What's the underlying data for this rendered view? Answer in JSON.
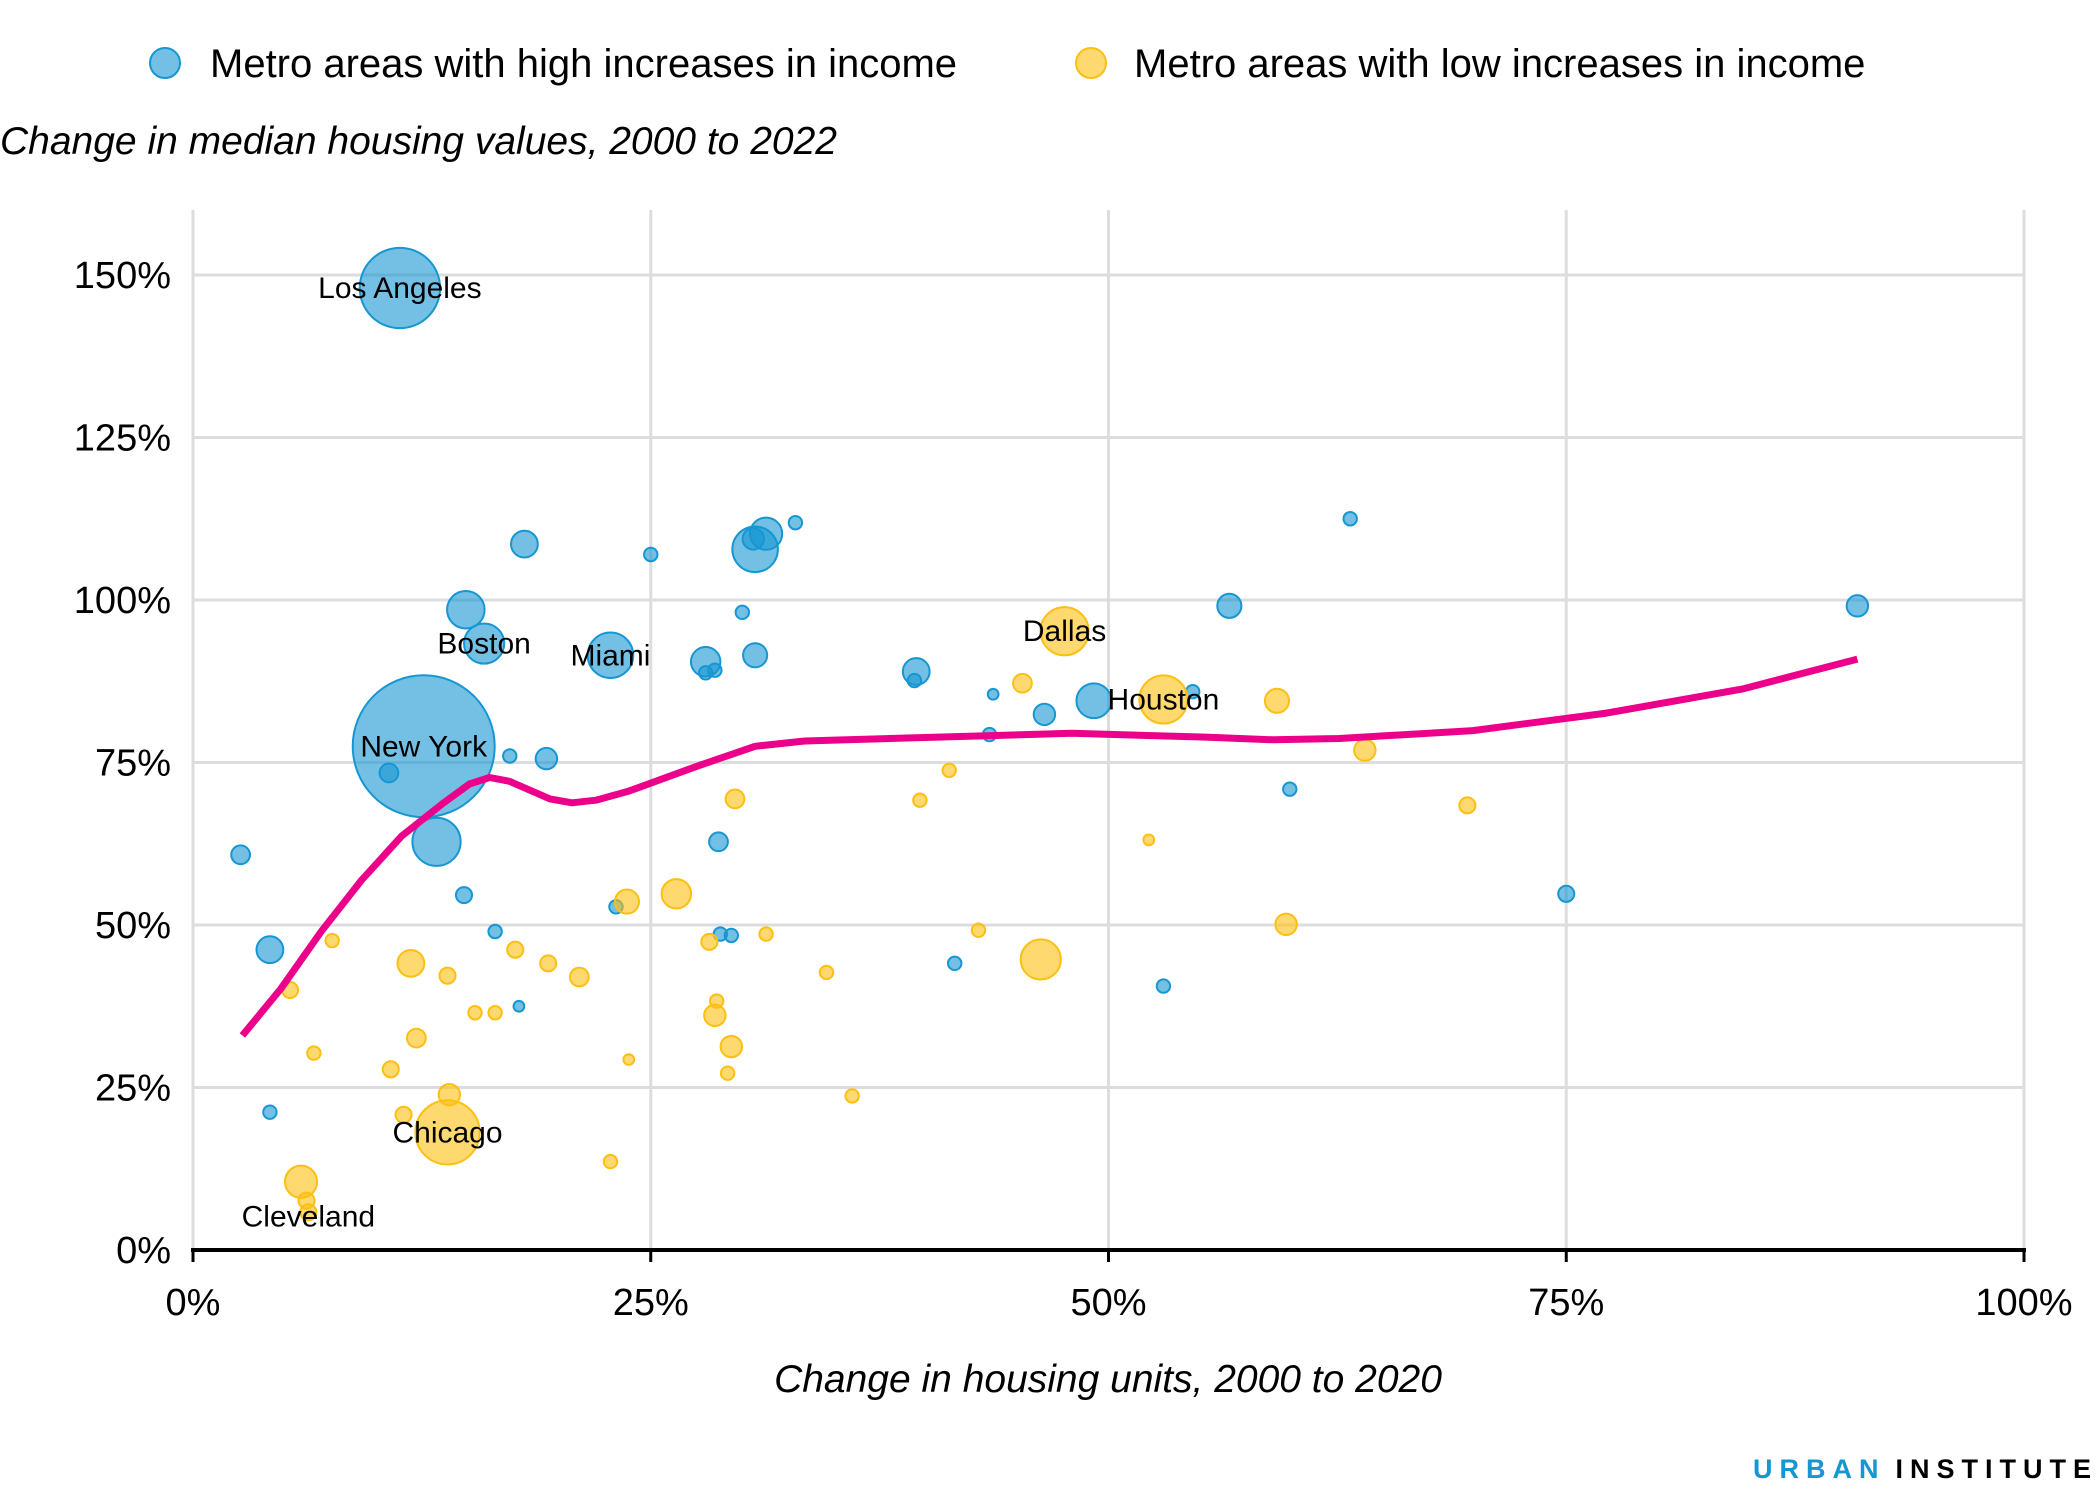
{
  "chart_data": {
    "type": "scatter",
    "subtitle": "Change in median housing values, 2000 to 2022",
    "xlabel": "Change in housing units, 2000 to 2020",
    "ylabel": "",
    "xlim": [
      0,
      100
    ],
    "ylim": [
      0,
      160
    ],
    "x_ticks": [
      0,
      25,
      50,
      75,
      100
    ],
    "x_tick_labels": [
      "0%",
      "25%",
      "50%",
      "75%",
      "100%"
    ],
    "y_ticks": [
      0,
      25,
      50,
      75,
      100,
      125,
      150
    ],
    "y_tick_labels": [
      "0%",
      "25%",
      "50%",
      "75%",
      "100%",
      "125%",
      "150%"
    ],
    "grid": true,
    "legend_position": "top",
    "colors": {
      "high": "#1696d2",
      "low": "#fdbf11",
      "trend": "#ec008b"
    },
    "series": [
      {
        "name": "Metro areas with high increases in income",
        "key": "high",
        "points": [
          {
            "x": 11.3,
            "y": 148.0,
            "size": 30,
            "label": "Los Angeles"
          },
          {
            "x": 12.6,
            "y": 77.5,
            "size": 53,
            "label": "New York"
          },
          {
            "x": 15.9,
            "y": 93.3,
            "size": 15,
            "label": "Boston"
          },
          {
            "x": 14.9,
            "y": 98.5,
            "size": 14
          },
          {
            "x": 22.8,
            "y": 91.5,
            "size": 17,
            "label": "Miami"
          },
          {
            "x": 18.1,
            "y": 108.6,
            "size": 10
          },
          {
            "x": 25.0,
            "y": 107.0,
            "size": 5
          },
          {
            "x": 30.7,
            "y": 107.8,
            "size": 17
          },
          {
            "x": 31.3,
            "y": 110.2,
            "size": 12
          },
          {
            "x": 30.6,
            "y": 109.4,
            "size": 8
          },
          {
            "x": 32.9,
            "y": 111.9,
            "size": 5
          },
          {
            "x": 30.0,
            "y": 98.1,
            "size": 5
          },
          {
            "x": 28.0,
            "y": 90.5,
            "size": 11
          },
          {
            "x": 28.0,
            "y": 88.8,
            "size": 5
          },
          {
            "x": 28.5,
            "y": 89.2,
            "size": 5
          },
          {
            "x": 30.7,
            "y": 91.5,
            "size": 9
          },
          {
            "x": 39.5,
            "y": 89.0,
            "size": 10
          },
          {
            "x": 39.4,
            "y": 87.6,
            "size": 5
          },
          {
            "x": 43.7,
            "y": 85.5,
            "size": 4
          },
          {
            "x": 46.5,
            "y": 82.4,
            "size": 8
          },
          {
            "x": 49.2,
            "y": 84.5,
            "size": 13
          },
          {
            "x": 54.6,
            "y": 85.9,
            "size": 5
          },
          {
            "x": 56.6,
            "y": 99.1,
            "size": 9
          },
          {
            "x": 63.2,
            "y": 112.5,
            "size": 5
          },
          {
            "x": 90.9,
            "y": 99.1,
            "size": 8
          },
          {
            "x": 43.5,
            "y": 79.3,
            "size": 5
          },
          {
            "x": 59.9,
            "y": 70.9,
            "size": 5
          },
          {
            "x": 75.0,
            "y": 54.8,
            "size": 6
          },
          {
            "x": 53.0,
            "y": 40.6,
            "size": 5
          },
          {
            "x": 41.6,
            "y": 44.1,
            "size": 5
          },
          {
            "x": 17.3,
            "y": 76.0,
            "size": 5
          },
          {
            "x": 19.3,
            "y": 75.6,
            "size": 8
          },
          {
            "x": 10.7,
            "y": 73.4,
            "size": 7
          },
          {
            "x": 13.3,
            "y": 62.8,
            "size": 18
          },
          {
            "x": 2.6,
            "y": 60.8,
            "size": 7
          },
          {
            "x": 14.8,
            "y": 54.6,
            "size": 6
          },
          {
            "x": 28.7,
            "y": 62.8,
            "size": 7
          },
          {
            "x": 23.1,
            "y": 52.8,
            "size": 5
          },
          {
            "x": 16.5,
            "y": 49.0,
            "size": 5
          },
          {
            "x": 28.8,
            "y": 48.6,
            "size": 5
          },
          {
            "x": 29.4,
            "y": 48.4,
            "size": 5
          },
          {
            "x": 4.2,
            "y": 46.2,
            "size": 10
          },
          {
            "x": 17.8,
            "y": 37.5,
            "size": 4
          },
          {
            "x": 4.2,
            "y": 21.2,
            "size": 5
          }
        ]
      },
      {
        "name": "Metro areas with low increases in income",
        "key": "low",
        "points": [
          {
            "x": 47.6,
            "y": 95.2,
            "size": 18,
            "label": "Dallas"
          },
          {
            "x": 53.0,
            "y": 84.7,
            "size": 18,
            "label": "Houston"
          },
          {
            "x": 45.3,
            "y": 87.2,
            "size": 7
          },
          {
            "x": 59.2,
            "y": 84.5,
            "size": 9
          },
          {
            "x": 64.0,
            "y": 76.9,
            "size": 8
          },
          {
            "x": 41.3,
            "y": 73.8,
            "size": 5
          },
          {
            "x": 69.6,
            "y": 68.4,
            "size": 6
          },
          {
            "x": 39.7,
            "y": 69.2,
            "size": 5
          },
          {
            "x": 52.2,
            "y": 63.1,
            "size": 4
          },
          {
            "x": 29.6,
            "y": 69.4,
            "size": 7
          },
          {
            "x": 26.4,
            "y": 54.8,
            "size": 11
          },
          {
            "x": 23.7,
            "y": 53.6,
            "size": 9
          },
          {
            "x": 59.7,
            "y": 50.1,
            "size": 8
          },
          {
            "x": 42.9,
            "y": 49.2,
            "size": 5
          },
          {
            "x": 31.3,
            "y": 48.6,
            "size": 5
          },
          {
            "x": 46.3,
            "y": 44.7,
            "size": 15
          },
          {
            "x": 28.2,
            "y": 47.4,
            "size": 6
          },
          {
            "x": 34.6,
            "y": 42.7,
            "size": 5
          },
          {
            "x": 7.6,
            "y": 47.6,
            "size": 5
          },
          {
            "x": 11.9,
            "y": 44.1,
            "size": 10
          },
          {
            "x": 17.6,
            "y": 46.2,
            "size": 6
          },
          {
            "x": 19.4,
            "y": 44.1,
            "size": 6
          },
          {
            "x": 21.1,
            "y": 42.0,
            "size": 7
          },
          {
            "x": 13.9,
            "y": 42.2,
            "size": 6
          },
          {
            "x": 5.3,
            "y": 40.0,
            "size": 6
          },
          {
            "x": 28.6,
            "y": 38.3,
            "size": 5
          },
          {
            "x": 28.5,
            "y": 36.1,
            "size": 8
          },
          {
            "x": 15.4,
            "y": 36.5,
            "size": 5
          },
          {
            "x": 16.5,
            "y": 36.5,
            "size": 5
          },
          {
            "x": 29.4,
            "y": 31.3,
            "size": 8
          },
          {
            "x": 12.2,
            "y": 32.6,
            "size": 7
          },
          {
            "x": 6.6,
            "y": 30.3,
            "size": 5
          },
          {
            "x": 23.8,
            "y": 29.3,
            "size": 4
          },
          {
            "x": 10.8,
            "y": 27.8,
            "size": 6
          },
          {
            "x": 29.2,
            "y": 27.2,
            "size": 5
          },
          {
            "x": 36.0,
            "y": 23.7,
            "size": 5
          },
          {
            "x": 14.0,
            "y": 23.9,
            "size": 8
          },
          {
            "x": 13.9,
            "y": 18.1,
            "size": 24,
            "label": "Chicago"
          },
          {
            "x": 11.5,
            "y": 20.8,
            "size": 6
          },
          {
            "x": 22.8,
            "y": 13.6,
            "size": 5
          },
          {
            "x": 5.9,
            "y": 10.5,
            "size": 12
          },
          {
            "x": 6.2,
            "y": 7.6,
            "size": 6
          },
          {
            "x": 6.3,
            "y": 5.8,
            "size": 6,
            "label": "Cleveland"
          }
        ]
      }
    ],
    "trend_line": [
      [
        2.7,
        33.0
      ],
      [
        4.8,
        40.2
      ],
      [
        7.0,
        49.0
      ],
      [
        9.2,
        56.9
      ],
      [
        11.4,
        63.7
      ],
      [
        13.6,
        68.6
      ],
      [
        15.1,
        71.7
      ],
      [
        16.2,
        72.7
      ],
      [
        17.3,
        72.1
      ],
      [
        19.5,
        69.4
      ],
      [
        20.7,
        68.8
      ],
      [
        22.0,
        69.2
      ],
      [
        23.8,
        70.6
      ],
      [
        27.5,
        74.4
      ],
      [
        30.7,
        77.5
      ],
      [
        33.4,
        78.3
      ],
      [
        40.7,
        78.9
      ],
      [
        48.0,
        79.5
      ],
      [
        55.3,
        78.9
      ],
      [
        59.0,
        78.5
      ],
      [
        62.6,
        78.7
      ],
      [
        69.9,
        79.9
      ],
      [
        77.2,
        82.6
      ],
      [
        84.6,
        86.3
      ],
      [
        90.9,
        90.9
      ]
    ]
  },
  "branding": {
    "part1": "URBAN",
    "part2": "INSTITUTE"
  }
}
